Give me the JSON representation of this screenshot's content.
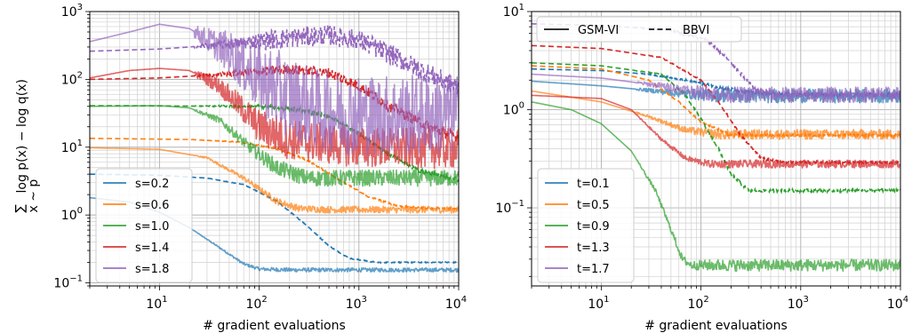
{
  "chart_data": [
    {
      "type": "line",
      "xlabel": "# gradient evaluations",
      "ylabel": "log p(x) − log q(x)",
      "ylabel_sum_subscript": "x ~ p",
      "x_scale": "log",
      "y_scale": "log",
      "xlim": [
        2,
        10000
      ],
      "ylim": [
        0.09,
        1000
      ],
      "x_ticks": [
        {
          "value": 10,
          "mantissa": "10",
          "exp": "1"
        },
        {
          "value": 100,
          "mantissa": "10",
          "exp": "2"
        },
        {
          "value": 1000,
          "mantissa": "10",
          "exp": "3"
        },
        {
          "value": 10000,
          "mantissa": "10",
          "exp": "4"
        }
      ],
      "y_ticks": [
        {
          "value": 0.1,
          "mantissa": "10",
          "exp": "−1"
        },
        {
          "value": 1,
          "mantissa": "10",
          "exp": "0"
        },
        {
          "value": 10,
          "mantissa": "10",
          "exp": "1"
        },
        {
          "value": 100,
          "mantissa": "10",
          "exp": "2"
        },
        {
          "value": 1000,
          "mantissa": "10",
          "exp": "3"
        }
      ],
      "grid": true,
      "legend_position": "lower-left",
      "series": [
        {
          "name": "s=0.2",
          "color": "#1f77b4",
          "solid": [
            [
              2,
              1.8
            ],
            [
              5,
              1.55
            ],
            [
              10,
              1.1
            ],
            [
              20,
              0.65
            ],
            [
              40,
              0.33
            ],
            [
              70,
              0.19
            ],
            [
              100,
              0.16
            ],
            [
              200,
              0.155
            ],
            [
              1000,
              0.155
            ],
            [
              10000,
              0.155
            ]
          ],
          "dashed": [
            [
              2,
              4.0
            ],
            [
              10,
              3.85
            ],
            [
              30,
              3.5
            ],
            [
              70,
              2.8
            ],
            [
              150,
              1.6
            ],
            [
              300,
              0.7
            ],
            [
              500,
              0.35
            ],
            [
              800,
              0.23
            ],
            [
              1500,
              0.2
            ],
            [
              10000,
              0.2
            ]
          ],
          "noise": 0.03
        },
        {
          "name": "s=0.6",
          "color": "#ff7f0e",
          "solid": [
            [
              2,
              9.8
            ],
            [
              10,
              9.3
            ],
            [
              30,
              7.0
            ],
            [
              70,
              3.5
            ],
            [
              150,
              1.6
            ],
            [
              250,
              1.25
            ],
            [
              500,
              1.2
            ],
            [
              10000,
              1.2
            ]
          ],
          "dashed": [
            [
              2,
              13.5
            ],
            [
              20,
              13.0
            ],
            [
              60,
              12.0
            ],
            [
              150,
              9.5
            ],
            [
              300,
              6.5
            ],
            [
              600,
              3.5
            ],
            [
              1200,
              1.9
            ],
            [
              2500,
              1.35
            ],
            [
              5000,
              1.25
            ],
            [
              10000,
              1.25
            ]
          ],
          "noise": 0.05
        },
        {
          "name": "s=1.0",
          "color": "#2ca02c",
          "solid": [
            [
              2,
              40
            ],
            [
              10,
              41
            ],
            [
              20,
              38
            ],
            [
              40,
              25
            ],
            [
              80,
              10
            ],
            [
              150,
              5.0
            ],
            [
              300,
              3.5
            ],
            [
              1000,
              3.5
            ],
            [
              10000,
              3.5
            ]
          ],
          "dashed": [
            [
              2,
              41
            ],
            [
              100,
              40
            ],
            [
              250,
              36
            ],
            [
              500,
              28
            ],
            [
              1000,
              16
            ],
            [
              2000,
              8
            ],
            [
              4000,
              4.5
            ],
            [
              10000,
              3.3
            ]
          ],
          "noise": 0.12
        },
        {
          "name": "s=1.4",
          "color": "#d62728",
          "solid": [
            [
              2,
              105
            ],
            [
              5,
              135
            ],
            [
              10,
              145
            ],
            [
              20,
              135
            ],
            [
              40,
              80
            ],
            [
              70,
              35
            ],
            [
              100,
              20
            ],
            [
              200,
              13
            ],
            [
              1000,
              10
            ],
            [
              10000,
              9.5
            ]
          ],
          "dashed": [
            [
              2,
              100
            ],
            [
              10,
              105
            ],
            [
              50,
              120
            ],
            [
              200,
              140
            ],
            [
              500,
              125
            ],
            [
              1000,
              80
            ],
            [
              2000,
              40
            ],
            [
              5000,
              20
            ],
            [
              10000,
              14
            ]
          ],
          "noise": 0.3
        },
        {
          "name": "s=1.8",
          "color": "#9467bd",
          "solid": [
            [
              2,
              360
            ],
            [
              5,
              500
            ],
            [
              10,
              650
            ],
            [
              20,
              560
            ],
            [
              50,
              250
            ],
            [
              100,
              100
            ],
            [
              200,
              55
            ],
            [
              400,
              35
            ],
            [
              1000,
              30
            ],
            [
              10000,
              30
            ]
          ],
          "dashed": [
            [
              2,
              260
            ],
            [
              10,
              280
            ],
            [
              50,
              330
            ],
            [
              200,
              410
            ],
            [
              500,
              450
            ],
            [
              1000,
              380
            ],
            [
              2000,
              240
            ],
            [
              4000,
              140
            ],
            [
              10000,
              75
            ]
          ],
          "noise": 0.6
        }
      ]
    },
    {
      "type": "line",
      "xlabel": "# gradient evaluations",
      "ylabel": "",
      "x_scale": "log",
      "y_scale": "log",
      "xlim": [
        2,
        10000
      ],
      "ylim": [
        0.016,
        10
      ],
      "x_ticks": [
        {
          "value": 10,
          "mantissa": "10",
          "exp": "1"
        },
        {
          "value": 100,
          "mantissa": "10",
          "exp": "2"
        },
        {
          "value": 1000,
          "mantissa": "10",
          "exp": "3"
        },
        {
          "value": 10000,
          "mantissa": "10",
          "exp": "4"
        }
      ],
      "y_ticks": [
        {
          "value": 0.1,
          "mantissa": "10",
          "exp": "−1"
        },
        {
          "value": 1,
          "mantissa": "10",
          "exp": "0"
        },
        {
          "value": 10,
          "mantissa": "10",
          "exp": "1"
        }
      ],
      "grid": true,
      "legend_position": "lower-left",
      "style_legend": {
        "position": "top-left",
        "items": [
          {
            "label": "GSM-VI",
            "dash": "solid"
          },
          {
            "label": "BBVI",
            "dash": "dashed"
          }
        ]
      },
      "series": [
        {
          "name": "t=0.1",
          "color": "#1f77b4",
          "solid": [
            [
              2,
              1.95
            ],
            [
              10,
              1.75
            ],
            [
              50,
              1.5
            ],
            [
              100,
              1.42
            ],
            [
              300,
              1.38
            ],
            [
              10000,
              1.38
            ]
          ],
          "dashed": [
            [
              2,
              2.6
            ],
            [
              10,
              2.5
            ],
            [
              30,
              2.3
            ],
            [
              70,
              2.0
            ],
            [
              150,
              1.7
            ],
            [
              300,
              1.5
            ],
            [
              600,
              1.42
            ],
            [
              10000,
              1.42
            ]
          ],
          "noise": 0.07
        },
        {
          "name": "t=0.5",
          "color": "#ff7f0e",
          "solid": [
            [
              2,
              1.55
            ],
            [
              10,
              1.2
            ],
            [
              30,
              0.85
            ],
            [
              70,
              0.62
            ],
            [
              150,
              0.56
            ],
            [
              10000,
              0.56
            ]
          ],
          "dashed": [
            [
              2,
              2.8
            ],
            [
              10,
              2.6
            ],
            [
              30,
              2.0
            ],
            [
              60,
              1.2
            ],
            [
              100,
              0.75
            ],
            [
              200,
              0.55
            ],
            [
              10000,
              0.55
            ]
          ],
          "noise": 0.05
        },
        {
          "name": "t=0.9",
          "color": "#2ca02c",
          "solid": [
            [
              2,
              1.2
            ],
            [
              5,
              1.0
            ],
            [
              10,
              0.72
            ],
            [
              20,
              0.38
            ],
            [
              35,
              0.15
            ],
            [
              50,
              0.06
            ],
            [
              65,
              0.03
            ],
            [
              80,
              0.026
            ],
            [
              10000,
              0.026
            ]
          ],
          "dashed": [
            [
              2,
              3.0
            ],
            [
              10,
              2.8
            ],
            [
              40,
              2.3
            ],
            [
              70,
              1.4
            ],
            [
              100,
              0.8
            ],
            [
              150,
              0.4
            ],
            [
              200,
              0.22
            ],
            [
              300,
              0.15
            ],
            [
              10000,
              0.15
            ]
          ],
          "noise": 0.06
        },
        {
          "name": "t=1.3",
          "color": "#d62728",
          "solid": [
            [
              2,
              1.4
            ],
            [
              10,
              1.3
            ],
            [
              20,
              1.0
            ],
            [
              40,
              0.5
            ],
            [
              70,
              0.32
            ],
            [
              120,
              0.28
            ],
            [
              10000,
              0.28
            ]
          ],
          "dashed": [
            [
              2,
              4.5
            ],
            [
              10,
              4.2
            ],
            [
              40,
              3.4
            ],
            [
              100,
              2.0
            ],
            [
              150,
              1.2
            ],
            [
              250,
              0.55
            ],
            [
              400,
              0.32
            ],
            [
              700,
              0.29
            ],
            [
              10000,
              0.29
            ]
          ],
          "noise": 0.04
        },
        {
          "name": "t=1.7",
          "color": "#9467bd",
          "solid": [
            [
              2,
              2.3
            ],
            [
              10,
              2.1
            ],
            [
              40,
              1.75
            ],
            [
              100,
              1.5
            ],
            [
              200,
              1.42
            ],
            [
              10000,
              1.42
            ]
          ],
          "dashed": [
            [
              2,
              7.5
            ],
            [
              10,
              7.2
            ],
            [
              50,
              6.5
            ],
            [
              120,
              5.0
            ],
            [
              200,
              3.0
            ],
            [
              350,
              1.6
            ],
            [
              600,
              1.42
            ],
            [
              10000,
              1.42
            ]
          ],
          "noise": 0.08
        }
      ]
    }
  ]
}
